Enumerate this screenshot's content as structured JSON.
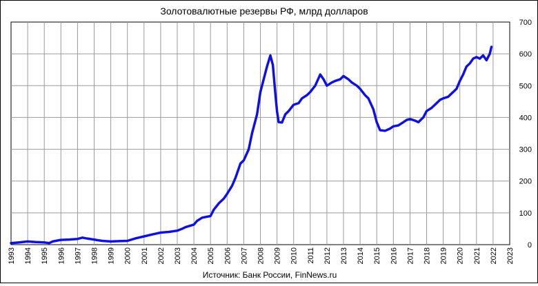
{
  "chart_data": {
    "type": "line",
    "title": "Золотовалютные резервы РФ, млрд долларов",
    "source": "Источник: Банк России, FinNews.ru",
    "xlabel": "",
    "ylabel": "",
    "x_ticks": [
      "1993",
      "1994",
      "1995",
      "1996",
      "1997",
      "1998",
      "1999",
      "2000",
      "2001",
      "2002",
      "2003",
      "2004",
      "2005",
      "2006",
      "2007",
      "2008",
      "2009",
      "2010",
      "2011",
      "2012",
      "2013",
      "2014",
      "2015",
      "2016",
      "2017",
      "2018",
      "2019",
      "2020",
      "2021",
      "2022",
      "2023"
    ],
    "y_ticks": [
      "0",
      "100",
      "200",
      "300",
      "400",
      "500",
      "600",
      "700"
    ],
    "xlim": [
      1993,
      2023
    ],
    "ylim": [
      0,
      700
    ],
    "y_axis_side": "right",
    "grid": true,
    "legend": "none",
    "series": [
      {
        "color": "#1010e0",
        "x": [
          1993.0,
          1993.5,
          1994.0,
          1994.5,
          1995.0,
          1995.3,
          1995.5,
          1995.8,
          1996.0,
          1996.5,
          1997.0,
          1997.3,
          1997.5,
          1998.0,
          1998.2,
          1998.5,
          1998.7,
          1999.0,
          1999.5,
          2000.0,
          2000.5,
          2001.0,
          2001.5,
          2002.0,
          2002.5,
          2003.0,
          2003.3,
          2003.5,
          2004.0,
          2004.2,
          2004.5,
          2005.0,
          2005.2,
          2005.5,
          2005.8,
          2006.0,
          2006.3,
          2006.5,
          2006.8,
          2007.0,
          2007.3,
          2007.5,
          2007.8,
          2008.0,
          2008.2,
          2008.4,
          2008.6,
          2008.75,
          2008.9,
          2009.0,
          2009.1,
          2009.3,
          2009.5,
          2009.7,
          2010.0,
          2010.3,
          2010.5,
          2010.8,
          2011.0,
          2011.3,
          2011.6,
          2011.8,
          2012.0,
          2012.3,
          2012.5,
          2012.8,
          2013.0,
          2013.3,
          2013.5,
          2013.8,
          2014.0,
          2014.3,
          2014.5,
          2014.8,
          2015.0,
          2015.2,
          2015.5,
          2015.8,
          2016.0,
          2016.3,
          2016.6,
          2016.8,
          2017.0,
          2017.3,
          2017.5,
          2017.8,
          2018.0,
          2018.3,
          2018.6,
          2018.8,
          2019.0,
          2019.3,
          2019.5,
          2019.8,
          2020.0,
          2020.2,
          2020.4,
          2020.6,
          2020.8,
          2021.0,
          2021.2,
          2021.4,
          2021.6,
          2021.8,
          2021.9
        ],
        "y": [
          5,
          7,
          10,
          8,
          7,
          5,
          10,
          13,
          15,
          16,
          18,
          22,
          20,
          16,
          14,
          12,
          11,
          10,
          11,
          12,
          20,
          26,
          32,
          38,
          40,
          44,
          50,
          55,
          63,
          75,
          85,
          90,
          110,
          130,
          145,
          160,
          185,
          210,
          255,
          265,
          300,
          350,
          410,
          480,
          520,
          560,
          595,
          565,
          475,
          420,
          385,
          384,
          410,
          420,
          440,
          445,
          460,
          470,
          480,
          500,
          535,
          520,
          500,
          510,
          515,
          520,
          530,
          520,
          510,
          500,
          490,
          470,
          460,
          425,
          385,
          360,
          358,
          365,
          372,
          375,
          385,
          392,
          395,
          390,
          385,
          400,
          420,
          430,
          445,
          455,
          460,
          465,
          475,
          490,
          515,
          535,
          560,
          570,
          585,
          590,
          585,
          595,
          580,
          600,
          622
        ]
      }
    ]
  }
}
